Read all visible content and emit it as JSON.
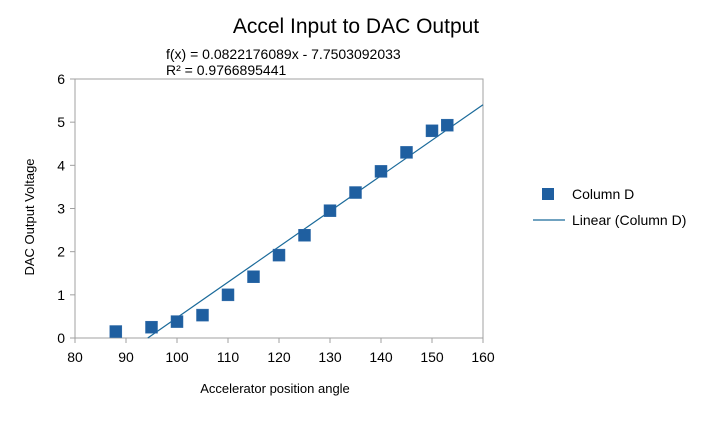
{
  "chart_data": {
    "type": "scatter",
    "title": "Accel Input to DAC Output",
    "xlabel": "Accelerator position angle",
    "ylabel": "DAC Output Voltage",
    "xlim": [
      80,
      160
    ],
    "ylim": [
      0,
      6
    ],
    "x_ticks": [
      80,
      90,
      100,
      110,
      120,
      130,
      140,
      150,
      160
    ],
    "y_ticks": [
      0,
      1,
      2,
      3,
      4,
      5,
      6
    ],
    "grid": false,
    "legend_position": "right",
    "series": [
      {
        "name": "Column D",
        "marker": "square",
        "color": "#1f5fa0",
        "x": [
          88,
          95,
          100,
          105,
          110,
          115,
          120,
          125,
          130,
          135,
          140,
          145,
          150,
          153
        ],
        "y": [
          0.15,
          0.25,
          0.38,
          0.53,
          1.0,
          1.42,
          1.92,
          2.38,
          2.95,
          3.37,
          3.86,
          4.3,
          4.8,
          4.93
        ]
      }
    ],
    "trendline": {
      "name": "Linear (Column D)",
      "color": "#1a6a9a",
      "slope": 0.0822176089,
      "intercept": -7.7503092033,
      "equation": "f(x) = 0.0822176089x - 7.7503092033",
      "r_squared": "R² = 0.9766895441"
    }
  }
}
